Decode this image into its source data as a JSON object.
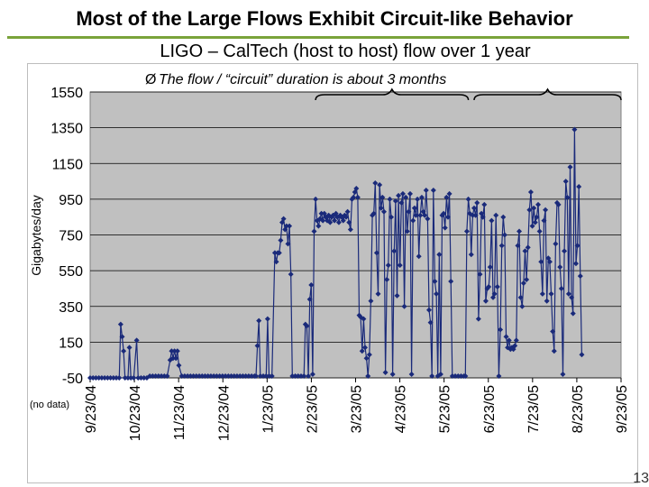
{
  "slide": {
    "title": "Most of the Large Flows Exhibit Circuit-like Behavior",
    "page_number": "13"
  },
  "colors": {
    "plot_bg": "#c0c0c0",
    "series": "#1a2a7a",
    "title_rule": "#7aa33a"
  },
  "chart_data": {
    "type": "line",
    "title": "LIGO – CalTech (host to host) flow over 1 year",
    "annotation": "The flow / “circuit” duration is about 3 months",
    "annotation_bullet": "Ø",
    "ylabel": "Gigabytes/day",
    "xlabel": "",
    "ylim": [
      -50,
      1550
    ],
    "yticks": [
      -50,
      150,
      350,
      550,
      750,
      950,
      1150,
      1350,
      1550
    ],
    "ytick_labels": [
      "-50",
      "150",
      "350",
      "550",
      "750",
      "950",
      "1150",
      "1350",
      "1550"
    ],
    "xticks": [
      "9/23/04",
      "10/23/04",
      "11/23/04",
      "12/23/04",
      "1/23/05",
      "2/23/05",
      "3/23/05",
      "4/23/05",
      "5/23/05",
      "6/23/05",
      "7/23/05",
      "8/23/05",
      "9/23/05"
    ],
    "no_data_label": "(no data)",
    "grid": true,
    "braces": [
      {
        "from_day": 155,
        "to_day": 260
      },
      {
        "from_day": 264,
        "to_day": 365
      }
    ],
    "series": [
      {
        "name": "LIGO – CalTech",
        "points": [
          [
            0,
            -50
          ],
          [
            2,
            -50
          ],
          [
            4,
            -50
          ],
          [
            6,
            -50
          ],
          [
            8,
            -50
          ],
          [
            10,
            -50
          ],
          [
            12,
            -50
          ],
          [
            14,
            -50
          ],
          [
            16,
            -50
          ],
          [
            18,
            -50
          ],
          [
            20,
            -50
          ],
          [
            21,
            250
          ],
          [
            22,
            180
          ],
          [
            23,
            100
          ],
          [
            24,
            -50
          ],
          [
            26,
            -50
          ],
          [
            27,
            120
          ],
          [
            28,
            -50
          ],
          [
            30,
            -50
          ],
          [
            32,
            160
          ],
          [
            33,
            -50
          ],
          [
            35,
            -50
          ],
          [
            37,
            -50
          ],
          [
            39,
            -50
          ],
          [
            41,
            -40
          ],
          [
            43,
            -40
          ],
          [
            45,
            -40
          ],
          [
            47,
            -40
          ],
          [
            49,
            -40
          ],
          [
            51,
            -40
          ],
          [
            53,
            -40
          ],
          [
            55,
            50
          ],
          [
            56,
            100
          ],
          [
            57,
            60
          ],
          [
            58,
            100
          ],
          [
            59,
            60
          ],
          [
            60,
            100
          ],
          [
            61,
            20
          ],
          [
            63,
            -40
          ],
          [
            65,
            -40
          ],
          [
            67,
            -40
          ],
          [
            69,
            -40
          ],
          [
            71,
            -40
          ],
          [
            73,
            -40
          ],
          [
            75,
            -40
          ],
          [
            77,
            -40
          ],
          [
            79,
            -40
          ],
          [
            81,
            -40
          ],
          [
            83,
            -40
          ],
          [
            85,
            -40
          ],
          [
            87,
            -40
          ],
          [
            89,
            -40
          ],
          [
            91,
            -40
          ],
          [
            93,
            -40
          ],
          [
            95,
            -40
          ],
          [
            97,
            -40
          ],
          [
            99,
            -40
          ],
          [
            101,
            -40
          ],
          [
            103,
            -40
          ],
          [
            105,
            -40
          ],
          [
            107,
            -40
          ],
          [
            109,
            -40
          ],
          [
            111,
            -40
          ],
          [
            113,
            -40
          ],
          [
            114,
            -40
          ],
          [
            115,
            130
          ],
          [
            116,
            270
          ],
          [
            117,
            -40
          ],
          [
            119,
            -40
          ],
          [
            121,
            -40
          ],
          [
            122,
            280
          ],
          [
            123,
            -40
          ],
          [
            125,
            -40
          ],
          [
            127,
            650
          ],
          [
            128,
            600
          ],
          [
            129,
            650
          ],
          [
            130,
            650
          ],
          [
            131,
            720
          ],
          [
            132,
            820
          ],
          [
            133,
            840
          ],
          [
            134,
            780
          ],
          [
            135,
            800
          ],
          [
            136,
            700
          ],
          [
            137,
            800
          ],
          [
            138,
            530
          ],
          [
            139,
            -40
          ],
          [
            141,
            -40
          ],
          [
            143,
            -40
          ],
          [
            145,
            -40
          ],
          [
            147,
            -40
          ],
          [
            148,
            250
          ],
          [
            149,
            240
          ],
          [
            150,
            -40
          ],
          [
            151,
            390
          ],
          [
            152,
            470
          ],
          [
            153,
            -30
          ],
          [
            154,
            770
          ],
          [
            155,
            950
          ],
          [
            156,
            830
          ],
          [
            157,
            800
          ],
          [
            158,
            840
          ],
          [
            159,
            870
          ],
          [
            160,
            830
          ],
          [
            161,
            870
          ],
          [
            162,
            850
          ],
          [
            163,
            830
          ],
          [
            164,
            860
          ],
          [
            165,
            820
          ],
          [
            166,
            850
          ],
          [
            167,
            860
          ],
          [
            168,
            830
          ],
          [
            169,
            870
          ],
          [
            170,
            850
          ],
          [
            171,
            820
          ],
          [
            172,
            860
          ],
          [
            173,
            850
          ],
          [
            174,
            830
          ],
          [
            175,
            860
          ],
          [
            176,
            850
          ],
          [
            177,
            880
          ],
          [
            178,
            820
          ],
          [
            179,
            780
          ],
          [
            180,
            950
          ],
          [
            181,
            960
          ],
          [
            182,
            990
          ],
          [
            183,
            1010
          ],
          [
            184,
            960
          ],
          [
            185,
            300
          ],
          [
            186,
            290
          ],
          [
            187,
            100
          ],
          [
            188,
            280
          ],
          [
            189,
            120
          ],
          [
            190,
            60
          ],
          [
            191,
            -40
          ],
          [
            192,
            80
          ],
          [
            193,
            380
          ],
          [
            194,
            860
          ],
          [
            195,
            870
          ],
          [
            196,
            1040
          ],
          [
            197,
            650
          ],
          [
            198,
            420
          ],
          [
            199,
            1030
          ],
          [
            200,
            900
          ],
          [
            201,
            960
          ],
          [
            202,
            880
          ],
          [
            203,
            -20
          ],
          [
            204,
            500
          ],
          [
            205,
            580
          ],
          [
            206,
            950
          ],
          [
            207,
            850
          ],
          [
            208,
            -30
          ],
          [
            209,
            660
          ],
          [
            210,
            940
          ],
          [
            211,
            410
          ],
          [
            212,
            970
          ],
          [
            213,
            580
          ],
          [
            214,
            930
          ],
          [
            215,
            980
          ],
          [
            216,
            350
          ],
          [
            217,
            960
          ],
          [
            218,
            770
          ],
          [
            219,
            880
          ],
          [
            220,
            980
          ],
          [
            221,
            -30
          ],
          [
            222,
            830
          ],
          [
            223,
            900
          ],
          [
            224,
            860
          ],
          [
            225,
            950
          ],
          [
            226,
            630
          ],
          [
            227,
            860
          ],
          [
            228,
            960
          ],
          [
            229,
            880
          ],
          [
            230,
            860
          ],
          [
            231,
            1000
          ],
          [
            232,
            840
          ],
          [
            233,
            330
          ],
          [
            234,
            260
          ],
          [
            235,
            -40
          ],
          [
            236,
            1000
          ],
          [
            237,
            490
          ],
          [
            238,
            420
          ],
          [
            239,
            -40
          ],
          [
            240,
            640
          ],
          [
            241,
            -30
          ],
          [
            242,
            860
          ],
          [
            243,
            870
          ],
          [
            244,
            790
          ],
          [
            245,
            960
          ],
          [
            246,
            850
          ],
          [
            247,
            980
          ],
          [
            248,
            490
          ],
          [
            249,
            -40
          ],
          [
            251,
            -40
          ],
          [
            253,
            -40
          ],
          [
            255,
            -40
          ],
          [
            257,
            -40
          ],
          [
            258,
            -40
          ],
          [
            259,
            770
          ],
          [
            260,
            950
          ],
          [
            261,
            870
          ],
          [
            262,
            640
          ],
          [
            263,
            860
          ],
          [
            264,
            900
          ],
          [
            265,
            860
          ],
          [
            266,
            930
          ],
          [
            267,
            280
          ],
          [
            268,
            530
          ],
          [
            269,
            870
          ],
          [
            270,
            850
          ],
          [
            271,
            920
          ],
          [
            272,
            380
          ],
          [
            273,
            450
          ],
          [
            274,
            460
          ],
          [
            275,
            570
          ],
          [
            276,
            830
          ],
          [
            277,
            400
          ],
          [
            278,
            420
          ],
          [
            279,
            860
          ],
          [
            280,
            460
          ],
          [
            281,
            -40
          ],
          [
            282,
            220
          ],
          [
            283,
            690
          ],
          [
            284,
            850
          ],
          [
            285,
            750
          ],
          [
            286,
            180
          ],
          [
            287,
            120
          ],
          [
            288,
            160
          ],
          [
            289,
            110
          ],
          [
            290,
            120
          ],
          [
            291,
            110
          ],
          [
            292,
            130
          ],
          [
            293,
            160
          ],
          [
            294,
            690
          ],
          [
            295,
            770
          ],
          [
            296,
            400
          ],
          [
            297,
            350
          ],
          [
            298,
            480
          ],
          [
            299,
            660
          ],
          [
            300,
            500
          ],
          [
            301,
            680
          ],
          [
            302,
            890
          ],
          [
            303,
            990
          ],
          [
            304,
            800
          ],
          [
            305,
            900
          ],
          [
            306,
            820
          ],
          [
            307,
            850
          ],
          [
            308,
            920
          ],
          [
            309,
            770
          ],
          [
            310,
            600
          ],
          [
            311,
            420
          ],
          [
            312,
            830
          ],
          [
            313,
            890
          ],
          [
            314,
            380
          ],
          [
            315,
            620
          ],
          [
            316,
            600
          ],
          [
            317,
            420
          ],
          [
            318,
            210
          ],
          [
            319,
            100
          ],
          [
            320,
            700
          ],
          [
            321,
            930
          ],
          [
            322,
            920
          ],
          [
            323,
            570
          ],
          [
            324,
            450
          ],
          [
            325,
            -30
          ],
          [
            326,
            660
          ],
          [
            327,
            1050
          ],
          [
            328,
            960
          ],
          [
            329,
            420
          ],
          [
            330,
            1130
          ],
          [
            331,
            400
          ],
          [
            332,
            310
          ],
          [
            333,
            1340
          ],
          [
            334,
            590
          ],
          [
            335,
            690
          ],
          [
            336,
            1020
          ],
          [
            337,
            520
          ],
          [
            338,
            80
          ]
        ]
      }
    ]
  }
}
